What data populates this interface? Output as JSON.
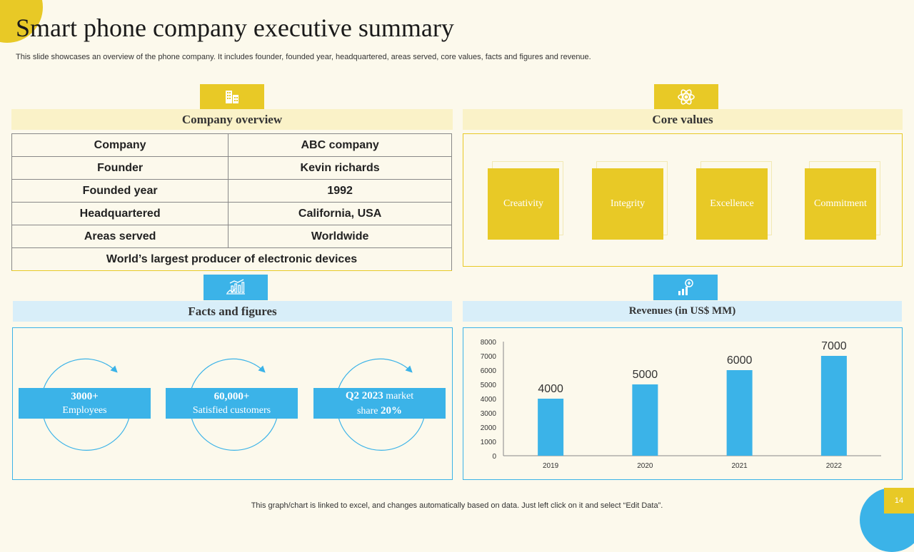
{
  "slide": {
    "title": "Smart phone company executive summary",
    "subtitle": "This slide showcases an overview of the phone company. It includes founder, founded year, headquartered, areas served, core values, facts and figures and revenue.",
    "footer_note": "This graph/chart is linked to excel,  and changes automatically based on data. Just left click on it and select “Edit Data”.",
    "page_number": "14"
  },
  "colors": {
    "yellow": "#e8c926",
    "blue": "#3bb3e8",
    "background": "#fcf9ec"
  },
  "overview": {
    "header": "Company overview",
    "icon": "building-icon",
    "rows": [
      [
        "Company",
        "ABC company"
      ],
      [
        "Founder",
        "Kevin richards"
      ],
      [
        "Founded year",
        "1992"
      ],
      [
        "Headquartered",
        "California, USA"
      ],
      [
        "Areas served",
        "Worldwide"
      ]
    ],
    "footer_row": "World’s largest producer of electronic devices"
  },
  "core_values": {
    "header": "Core values",
    "icon": "atom-icon",
    "items": [
      "Creativity",
      "Integrity",
      "Excellence",
      "Commitment"
    ]
  },
  "facts": {
    "header": "Facts and figures",
    "icon": "chart-hand-icon",
    "items": [
      {
        "value": "3000+",
        "label": "Employees"
      },
      {
        "value": "60,000+",
        "label": "Satisfied  customers"
      },
      {
        "value": "Q2 2023",
        "label": " market",
        "line2_pre": "share ",
        "line2_value": "20%"
      }
    ]
  },
  "revenue": {
    "header": "Revenues (in US$ MM)",
    "icon": "growth-chart-icon"
  },
  "chart_data": {
    "type": "bar",
    "title": "Revenues (in US$ MM)",
    "categories": [
      "2019",
      "2020",
      "2021",
      "2022"
    ],
    "values": [
      4000,
      5000,
      6000,
      7000
    ],
    "y_ticks": [
      0,
      1000,
      2000,
      3000,
      4000,
      5000,
      6000,
      7000,
      8000
    ],
    "ylim": [
      0,
      8000
    ],
    "xlabel": "",
    "ylabel": "",
    "bar_color": "#3bb3e8"
  }
}
